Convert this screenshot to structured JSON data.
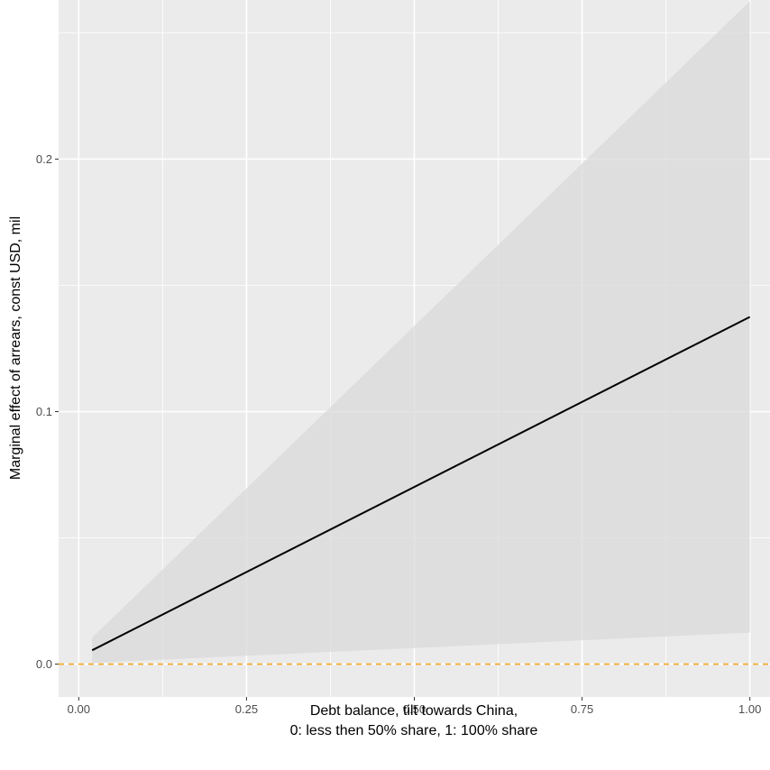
{
  "chart_data": {
    "type": "line",
    "title": "",
    "xlabel_line1": "Debt balance, tilt towards China,",
    "xlabel_line2": "0: less then 50% share, 1: 100% share",
    "ylabel": "Marginal effect of arrears, const USD, mil",
    "xlim": [
      -0.03,
      1.03
    ],
    "ylim": [
      -0.013,
      0.263
    ],
    "x_ticks": [
      0.0,
      0.25,
      0.5,
      0.75,
      1.0
    ],
    "x_tick_labels": [
      "0.00",
      "0.25",
      "0.50",
      "0.75",
      "1.00"
    ],
    "y_ticks": [
      0.0,
      0.1,
      0.2
    ],
    "y_tick_labels": [
      "0.0",
      "0.1",
      "0.2"
    ],
    "grid": true,
    "estimate": {
      "x": [
        0.02,
        1.0
      ],
      "y": [
        0.0055,
        0.1375
      ]
    },
    "confidence_band": {
      "x": [
        0.02,
        1.0
      ],
      "lower": [
        0.0005,
        0.0125
      ],
      "upper": [
        0.0105,
        0.2625
      ]
    },
    "reference_line": {
      "y": 0.0,
      "style": "dashed"
    },
    "colors": {
      "panel": "#ebebeb",
      "grid": "#ffffff",
      "estimate": "#000000",
      "band": "#d9d9d9",
      "reference": "#f5a623"
    }
  }
}
